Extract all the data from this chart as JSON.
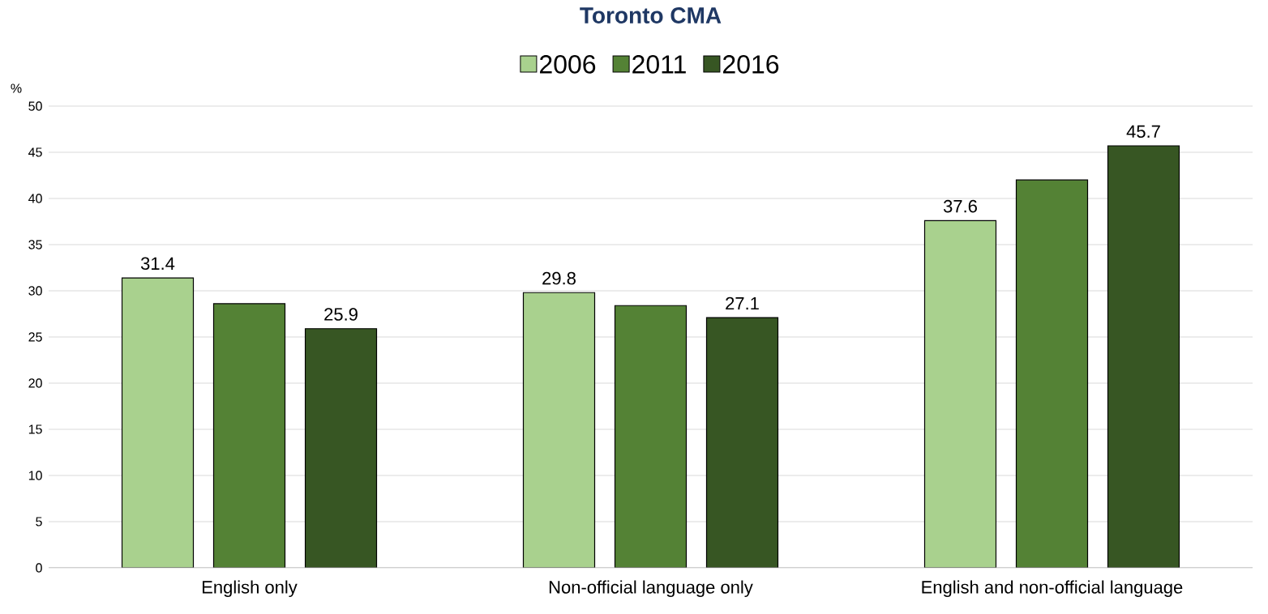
{
  "chart_data": {
    "type": "bar",
    "title": "Toronto CMA",
    "ylabel": "%",
    "categories": [
      "English only",
      "Non-official language only",
      "English and non-official language"
    ],
    "series": [
      {
        "name": "2006",
        "color": "#a9d18e",
        "values": [
          31.4,
          29.8,
          37.6
        ],
        "value_labels": [
          "31.4",
          "29.8",
          "37.6"
        ]
      },
      {
        "name": "2011",
        "color": "#548235",
        "values": [
          28.6,
          28.4,
          42.0
        ],
        "value_labels": [
          null,
          null,
          null
        ]
      },
      {
        "name": "2016",
        "color": "#375623",
        "values": [
          25.9,
          27.1,
          45.7
        ],
        "value_labels": [
          "25.9",
          "27.1",
          "45.7"
        ]
      }
    ],
    "ylim": [
      0,
      50
    ],
    "yticks": [
      0,
      5,
      10,
      15,
      20,
      25,
      30,
      35,
      40,
      45,
      50
    ],
    "grid": "y",
    "legend": "top"
  }
}
